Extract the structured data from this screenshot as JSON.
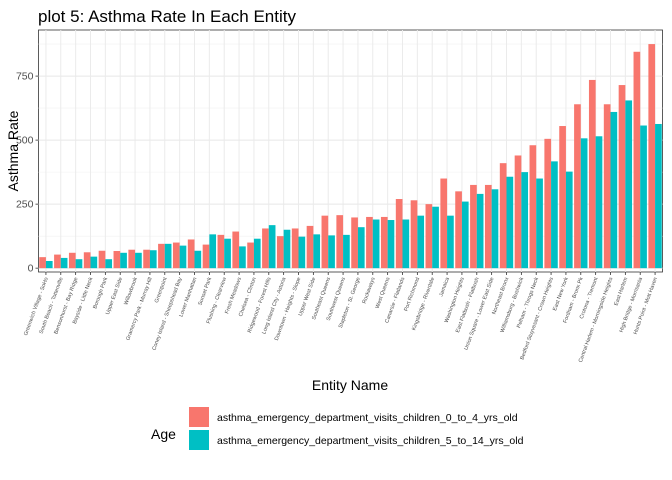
{
  "chart_data": {
    "type": "bar",
    "title": "plot 5: Asthma Rate In Each Entity",
    "xlabel": "Entity Name",
    "ylabel": "Asthma Rate",
    "ylim": [
      -15,
      930
    ],
    "yticks": [
      0,
      250,
      500,
      750
    ],
    "legend_title": "Age",
    "legend_position": "bottom",
    "categories": [
      "Greenwich Village - SoHo",
      "South Beach - Tottenville",
      "Bensonhurst - Bay Ridge",
      "Bayside - Little Neck",
      "Borough Park",
      "Upper East Side",
      "Willowbrook",
      "Gramercy Park - Murray Hill",
      "Greenpoint",
      "Coney Island - Sheepshead Bay",
      "Lower Manhattan",
      "Sunset Park",
      "Flushing - Clearview",
      "Fresh Meadows",
      "Chelsea - Clinton",
      "Ridgewood - Forest Hills",
      "Long Island City - Astoria",
      "Downtown - Heights - Slope",
      "Upper West Side",
      "Southeast Queens",
      "Southwest Queens",
      "Stapleton - St. George",
      "Rockaways",
      "West Queens",
      "Canarsie - Flatlands",
      "Port Richmond",
      "Kingsbridge - Riverdale",
      "Jamaica",
      "Washington Heights",
      "East Flatbush - Flatbush",
      "Union Square - Lower East Side",
      "Northeast Bronx",
      "Williamsburg - Bushwick",
      "Pelham - Throgs Neck",
      "Bedford Stuyvesant - Crown Heights",
      "East New York",
      "Fordham - Bronx Pk",
      "Crotona - Tremont",
      "Central Harlem - Morningside Heights",
      "East Harlem",
      "High Bridge - Morrisania",
      "Hunts Point - Mott Haven"
    ],
    "series": [
      {
        "name": "asthma_emergency_department_visits_children_0_to_4_yrs_old",
        "color": "#F8766D",
        "values": [
          43,
          53,
          60,
          62,
          68,
          67,
          72,
          72,
          95,
          100,
          112,
          92,
          130,
          143,
          100,
          155,
          125,
          155,
          165,
          205,
          207,
          198,
          200,
          200,
          270,
          265,
          250,
          350,
          300,
          325,
          325,
          410,
          440,
          480,
          505,
          555,
          640,
          735,
          640,
          715,
          845,
          875
        ]
      },
      {
        "name": "asthma_emergency_department_visits_children_5_to_14_yrs_old",
        "color": "#00BFC4",
        "values": [
          28,
          40,
          35,
          45,
          35,
          60,
          60,
          70,
          95,
          88,
          68,
          132,
          115,
          85,
          115,
          168,
          150,
          123,
          132,
          128,
          130,
          160,
          190,
          188,
          190,
          205,
          240,
          205,
          260,
          290,
          308,
          357,
          375,
          350,
          417,
          377,
          507,
          515,
          610,
          655,
          557,
          563
        ]
      }
    ]
  }
}
